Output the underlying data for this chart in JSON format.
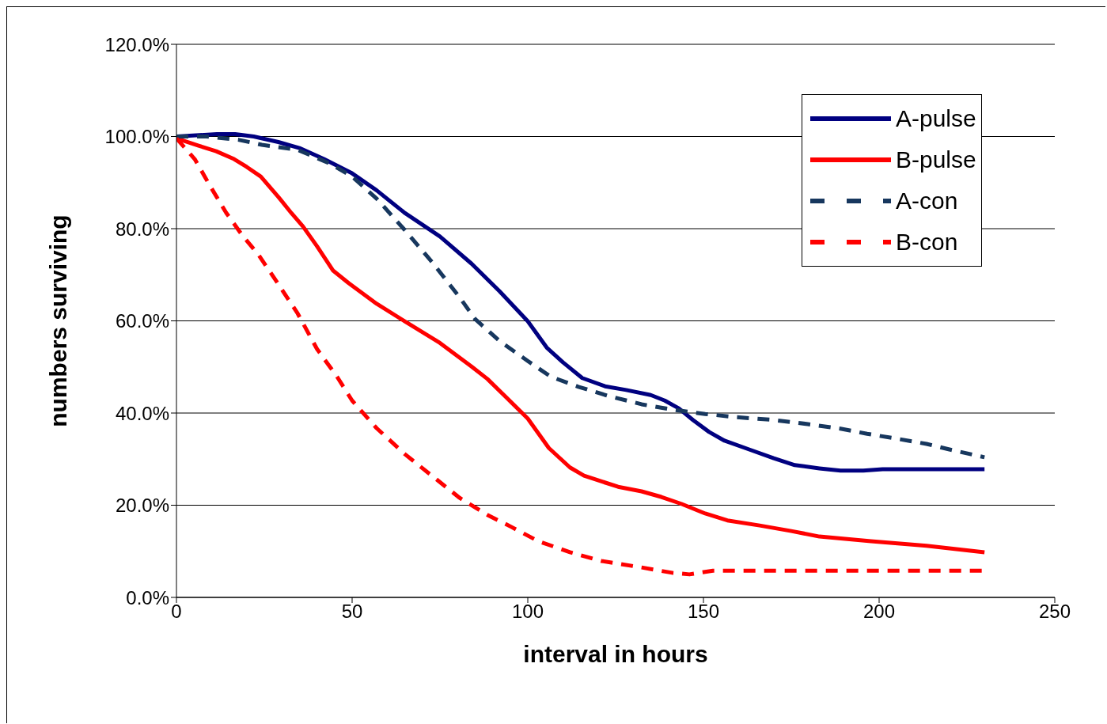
{
  "chart_data": {
    "type": "line",
    "xlabel": "interval in hours",
    "ylabel": "numbers surviving",
    "xlim": [
      0,
      250
    ],
    "xticks": [
      0,
      50,
      100,
      150,
      200,
      250
    ],
    "ylim": [
      0,
      120
    ],
    "yticks": [
      {
        "value": 0,
        "label": "0.0%"
      },
      {
        "value": 20,
        "label": "20.0%"
      },
      {
        "value": 40,
        "label": "40.0%"
      },
      {
        "value": 60,
        "label": "60.0%"
      },
      {
        "value": 80,
        "label": "80.0%"
      },
      {
        "value": 100,
        "label": "100.0%"
      },
      {
        "value": 120,
        "label": "120.0%"
      }
    ],
    "grid": "y",
    "legend": "top right",
    "marker": "none",
    "series": [
      {
        "name": "A-pulse",
        "color": "#000080",
        "line_style": "solid",
        "x": [
          0,
          11.5,
          16.7,
          22,
          29,
          35,
          42,
          50,
          57,
          65,
          75,
          84,
          92,
          100,
          105.4,
          110,
          115.5,
          122,
          128,
          135,
          139,
          143,
          147,
          151.6,
          156,
          163,
          170,
          176,
          183,
          189,
          195.5,
          201,
          211,
          230
        ],
        "values": [
          100,
          100.5,
          100.5,
          100,
          98.8,
          97.5,
          95.1,
          92,
          88.3,
          83.4,
          78.3,
          72.4,
          66.4,
          59.9,
          54.2,
          51,
          47.6,
          45.8,
          45,
          43.9,
          42.7,
          41,
          38.5,
          35.9,
          34,
          32.1,
          30.2,
          28.7,
          28,
          27.5,
          27.5,
          27.8,
          27.8,
          27.8
        ]
      },
      {
        "name": "B-pulse",
        "color": "#ff0000",
        "line_style": "solid",
        "x": [
          0,
          6.3,
          11.3,
          16.4,
          20,
          24,
          29,
          32.7,
          36,
          40,
          44.6,
          49,
          57,
          65,
          75,
          84,
          88.5,
          94,
          100,
          106,
          112,
          116,
          125.7,
          132.4,
          138,
          143.7,
          150.5,
          156.8,
          166,
          175,
          183,
          197.7,
          213.5,
          230
        ],
        "values": [
          99.6,
          98,
          96.8,
          95.1,
          93.4,
          91.3,
          86.9,
          83.4,
          80.5,
          76.2,
          70.9,
          68.2,
          63.7,
          59.9,
          55.2,
          50.1,
          47.4,
          43.3,
          38.8,
          32.4,
          28.2,
          26.4,
          24,
          23,
          21.8,
          20.3,
          18.2,
          16.7,
          15.6,
          14.4,
          13.2,
          12.2,
          11.2,
          9.8
        ]
      },
      {
        "name": "A-con",
        "color": "#17375e",
        "line_style": "dashed",
        "x": [
          0,
          8.6,
          17.6,
          24.3,
          34.5,
          43.5,
          50,
          57,
          65,
          72.7,
          80.6,
          85,
          92,
          100,
          106.5,
          114.4,
          123.4,
          132.4,
          141.4,
          150.5,
          159.5,
          170,
          179.7,
          189,
          196.6,
          204.5,
          213.5,
          220,
          230
        ],
        "values": [
          100,
          100,
          99.3,
          98.2,
          97.1,
          94.2,
          91.3,
          86.5,
          79.7,
          72.8,
          65.1,
          60.4,
          55.6,
          51.3,
          47.9,
          45.7,
          43.6,
          41.9,
          40.7,
          39.8,
          39.1,
          38.5,
          37.6,
          36.6,
          35.5,
          34.5,
          33.3,
          32.1,
          30.4
        ]
      },
      {
        "name": "B-con",
        "color": "#ff0000",
        "line_style": "dashed",
        "x": [
          0,
          5.2,
          9.7,
          14.2,
          18.7,
          23.2,
          28.8,
          34.5,
          40,
          45.7,
          50,
          57,
          65,
          72.7,
          80.6,
          88.5,
          95.3,
          103,
          112,
          121,
          132.4,
          141.4,
          146,
          152.7,
          175,
          230
        ],
        "values": [
          99.6,
          95.1,
          89.1,
          83.4,
          78.6,
          74.5,
          68.2,
          61.6,
          53.9,
          47.9,
          42.7,
          36.7,
          31.1,
          26.4,
          21.6,
          17.9,
          15.3,
          12.2,
          9.8,
          7.9,
          6.5,
          5.3,
          5,
          5.8,
          5.8,
          5.8
        ]
      }
    ]
  }
}
